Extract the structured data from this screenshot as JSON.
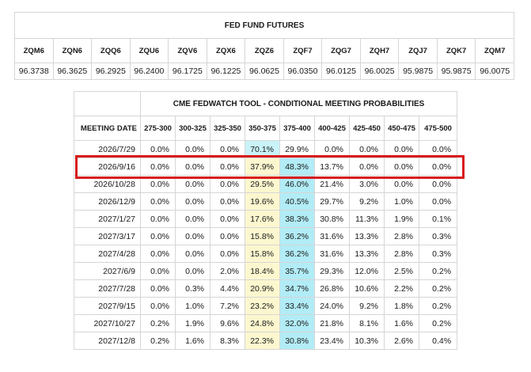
{
  "futures": {
    "title": "FED FUND FUTURES",
    "contracts": [
      "ZQM6",
      "ZQN6",
      "ZQQ6",
      "ZQU6",
      "ZQV6",
      "ZQX6",
      "ZQZ6",
      "ZQF7",
      "ZQG7",
      "ZQH7",
      "ZQJ7",
      "ZQK7",
      "ZQM7"
    ],
    "prices": [
      "96.3738",
      "96.3625",
      "96.2925",
      "96.2400",
      "96.1725",
      "96.1225",
      "96.0625",
      "96.0350",
      "96.0125",
      "96.0025",
      "95.9875",
      "95.9875",
      "96.0075"
    ]
  },
  "fedwatch": {
    "title": "CME FEDWATCH TOOL - CONDITIONAL MEETING PROBABILITIES",
    "date_header": "MEETING DATE",
    "ranges": [
      "275-300",
      "300-325",
      "325-350",
      "350-375",
      "375-400",
      "400-425",
      "425-450",
      "450-475",
      "475-500"
    ],
    "rows": [
      {
        "date": "2026/7/29",
        "values": [
          "0.0%",
          "0.0%",
          "0.0%",
          "70.1%",
          "29.9%",
          "0.0%",
          "0.0%",
          "0.0%",
          "0.0%"
        ]
      },
      {
        "date": "2026/9/16",
        "values": [
          "0.0%",
          "0.0%",
          "0.0%",
          "37.9%",
          "48.3%",
          "13.7%",
          "0.0%",
          "0.0%",
          "0.0%"
        ]
      },
      {
        "date": "2026/10/28",
        "values": [
          "0.0%",
          "0.0%",
          "0.0%",
          "29.5%",
          "46.0%",
          "21.4%",
          "3.0%",
          "0.0%",
          "0.0%"
        ]
      },
      {
        "date": "2026/12/9",
        "values": [
          "0.0%",
          "0.0%",
          "0.0%",
          "19.6%",
          "40.5%",
          "29.7%",
          "9.2%",
          "1.0%",
          "0.0%"
        ]
      },
      {
        "date": "2027/1/27",
        "values": [
          "0.0%",
          "0.0%",
          "0.0%",
          "17.6%",
          "38.3%",
          "30.8%",
          "11.3%",
          "1.9%",
          "0.1%"
        ]
      },
      {
        "date": "2027/3/17",
        "values": [
          "0.0%",
          "0.0%",
          "0.0%",
          "15.8%",
          "36.2%",
          "31.6%",
          "13.3%",
          "2.8%",
          "0.3%"
        ]
      },
      {
        "date": "2027/4/28",
        "values": [
          "0.0%",
          "0.0%",
          "0.0%",
          "15.8%",
          "36.2%",
          "31.6%",
          "13.3%",
          "2.8%",
          "0.3%"
        ]
      },
      {
        "date": "2027/6/9",
        "values": [
          "0.0%",
          "0.0%",
          "2.0%",
          "18.4%",
          "35.7%",
          "29.3%",
          "12.0%",
          "2.5%",
          "0.2%"
        ]
      },
      {
        "date": "2027/7/28",
        "values": [
          "0.0%",
          "0.3%",
          "4.4%",
          "20.9%",
          "34.7%",
          "26.8%",
          "10.6%",
          "2.2%",
          "0.2%"
        ]
      },
      {
        "date": "2027/9/15",
        "values": [
          "0.0%",
          "1.0%",
          "7.2%",
          "23.2%",
          "33.4%",
          "24.0%",
          "9.2%",
          "1.8%",
          "0.2%"
        ]
      },
      {
        "date": "2027/10/27",
        "values": [
          "0.2%",
          "1.9%",
          "9.6%",
          "24.8%",
          "32.0%",
          "21.8%",
          "8.1%",
          "1.6%",
          "0.2%"
        ]
      },
      {
        "date": "2027/12/8",
        "values": [
          "0.2%",
          "1.6%",
          "8.3%",
          "22.3%",
          "30.8%",
          "23.4%",
          "10.3%",
          "2.6%",
          "0.4%"
        ]
      }
    ],
    "highlighted_row": "2026/9/16"
  },
  "colors": {
    "highlight_border": "#d81b1b",
    "max_cell": "#b2ecf6",
    "second_cell": "#c9f3f8",
    "yellow_cell": "#fcf7cf"
  }
}
